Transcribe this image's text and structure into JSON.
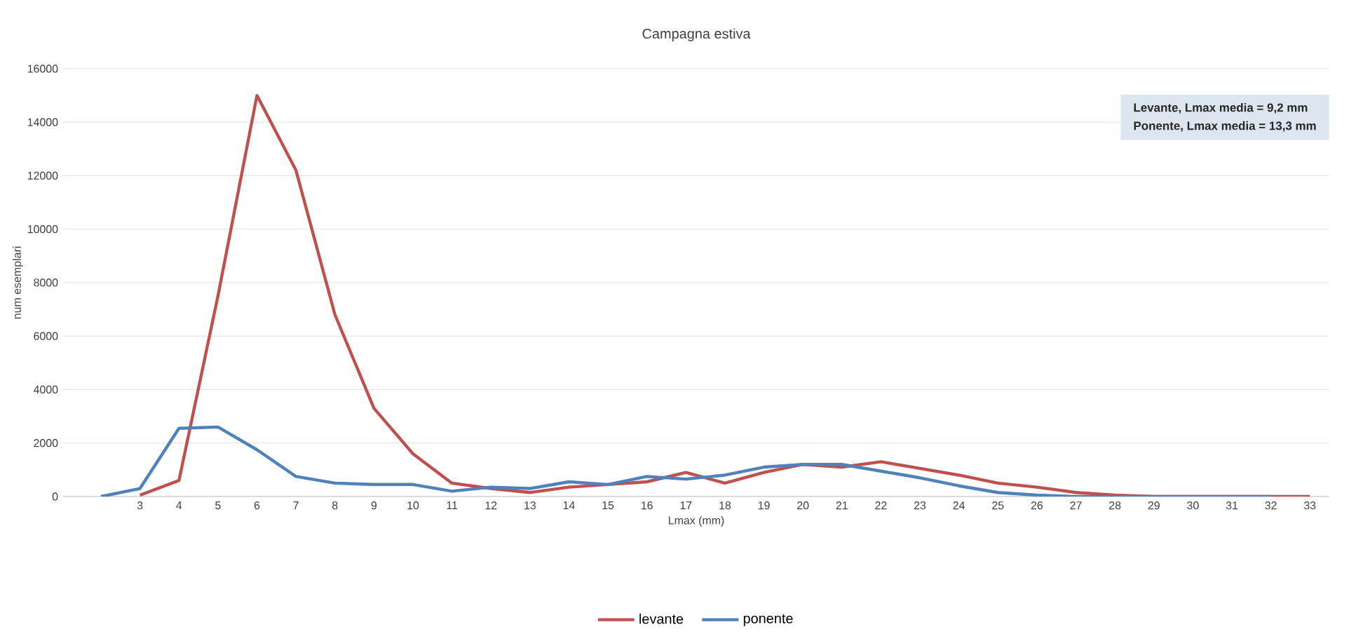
{
  "chart_data": {
    "type": "line",
    "title": "Campagna estiva",
    "xlabel": "Lmax (mm)",
    "ylabel": "num esemplari",
    "categories": [
      null,
      "3",
      "4",
      "5",
      "6",
      "7",
      "8",
      "9",
      "10",
      "11",
      "12",
      "13",
      "14",
      "15",
      "16",
      "17",
      "18",
      "19",
      "20",
      "21",
      "22",
      "23",
      "24",
      "25",
      "26",
      "27",
      "28",
      "29",
      "30",
      "31",
      "32",
      "33"
    ],
    "series": [
      {
        "name": "levante",
        "color": "#c0504d",
        "values": [
          null,
          50,
          600,
          7500,
          15000,
          12200,
          6800,
          3300,
          1600,
          500,
          300,
          150,
          350,
          450,
          550,
          900,
          500,
          900,
          1200,
          1100,
          1300,
          1050,
          800,
          500,
          350,
          150,
          50,
          0,
          0,
          0,
          0,
          0
        ]
      },
      {
        "name": "ponente",
        "color": "#4f81bd",
        "values": [
          0,
          300,
          2550,
          2600,
          1750,
          750,
          500,
          450,
          450,
          200,
          350,
          300,
          550,
          450,
          750,
          650,
          800,
          1100,
          1200,
          1200,
          950,
          700,
          400,
          150,
          50,
          0,
          0,
          0,
          0,
          0,
          0,
          null
        ]
      }
    ],
    "ylim": [
      0,
      16000
    ],
    "yticks": [
      0,
      2000,
      4000,
      6000,
      8000,
      10000,
      12000,
      14000,
      16000
    ],
    "grid": "y",
    "legend": "bottom",
    "marker": "none",
    "line_style": "solid",
    "annotations": [
      "Levante, Lmax media = 9,2 mm",
      "Ponente, Lmax media = 13,3 mm"
    ]
  }
}
